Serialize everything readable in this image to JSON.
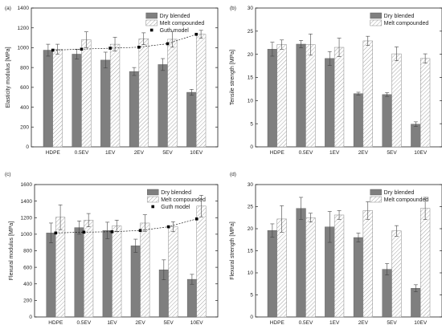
{
  "colors": {
    "dry": "#7f7f7f",
    "melt_hatch": "#9a9a9a",
    "guth": "#000000",
    "axis": "#222222"
  },
  "chart_data": [
    {
      "type": "bar",
      "panel_label": "(a)",
      "title": "",
      "xlabel": "",
      "ylabel": "Elasticity modulus [MPa]",
      "categories": [
        "HDPE",
        "0.5EV",
        "1EV",
        "2EV",
        "5EV",
        "10EV"
      ],
      "ylim": [
        0,
        1400
      ],
      "yticks": [
        0,
        200,
        400,
        600,
        800,
        1000,
        1200,
        1400
      ],
      "grid": false,
      "legend_position": "top-right",
      "series": [
        {
          "name": "Dry blended",
          "style": "solid",
          "values": [
            975,
            935,
            875,
            760,
            830,
            550
          ],
          "errors": [
            60,
            50,
            80,
            40,
            60,
            30
          ]
        },
        {
          "name": "Melt compounded",
          "style": "hatched",
          "values": [
            985,
            1080,
            1035,
            1090,
            1085,
            1135
          ],
          "errors": [
            50,
            80,
            70,
            60,
            80,
            40
          ]
        },
        {
          "name": "Guth model",
          "style": "points-dashed",
          "values": [
            975,
            985,
            995,
            1005,
            1040,
            1135
          ]
        }
      ]
    },
    {
      "type": "bar",
      "panel_label": "(b)",
      "title": "",
      "xlabel": "",
      "ylabel": "Tensile strength [MPa]",
      "categories": [
        "HDPE",
        "0.5EV",
        "1EV",
        "2EV",
        "5EV",
        "10EV"
      ],
      "ylim": [
        0,
        30
      ],
      "yticks": [
        0,
        5,
        10,
        15,
        20,
        25,
        30
      ],
      "grid": false,
      "legend_position": "top-right",
      "series": [
        {
          "name": "Dry blended",
          "style": "solid",
          "values": [
            21.1,
            22.2,
            19.1,
            11.5,
            11.3,
            4.9
          ],
          "errors": [
            1.5,
            0.8,
            1.5,
            0.3,
            0.4,
            0.5
          ]
        },
        {
          "name": "Melt compounded",
          "style": "hatched",
          "values": [
            22.1,
            22.1,
            21.5,
            22.9,
            20.1,
            19.1
          ],
          "errors": [
            1.0,
            2.3,
            2.0,
            1.0,
            1.5,
            1.0
          ]
        }
      ]
    },
    {
      "type": "bar",
      "panel_label": "(c)",
      "title": "",
      "xlabel": "",
      "ylabel": "Flexural modulus [MPa]",
      "categories": [
        "HDPE",
        "0.5EV",
        "1EV",
        "2EV",
        "5EV",
        "10EV"
      ],
      "ylim": [
        0,
        1600
      ],
      "yticks": [
        0,
        200,
        400,
        600,
        800,
        1000,
        1200,
        1400,
        1600
      ],
      "grid": false,
      "legend_position": "top-right",
      "series": [
        {
          "name": "Dry blended",
          "style": "solid",
          "values": [
            1015,
            1080,
            1045,
            860,
            570,
            455
          ],
          "errors": [
            120,
            80,
            100,
            80,
            120,
            60
          ]
        },
        {
          "name": "Melt compounded",
          "style": "hatched",
          "values": [
            1205,
            1170,
            1100,
            1135,
            1090,
            1340
          ],
          "errors": [
            150,
            80,
            70,
            100,
            60,
            130
          ]
        },
        {
          "name": "Guth model",
          "style": "points-dashed",
          "values": [
            1015,
            1025,
            1030,
            1045,
            1090,
            1185
          ]
        }
      ]
    },
    {
      "type": "bar",
      "panel_label": "(d)",
      "title": "",
      "xlabel": "",
      "ylabel": "Flexural strength [MPa]",
      "categories": [
        "HDPE",
        "0.5EV",
        "1EV",
        "2EV",
        "5EV",
        "10EV"
      ],
      "ylim": [
        0,
        30
      ],
      "yticks": [
        0,
        5,
        10,
        15,
        20,
        25,
        30
      ],
      "grid": false,
      "legend_position": "top-right",
      "series": [
        {
          "name": "Dry blended",
          "style": "solid",
          "values": [
            19.6,
            24.6,
            20.4,
            18.0,
            10.8,
            6.5
          ],
          "errors": [
            1.5,
            2.5,
            3.5,
            1.0,
            1.3,
            0.8
          ]
        },
        {
          "name": "Melt compounded",
          "style": "hatched",
          "values": [
            22.2,
            22.5,
            23.1,
            24.1,
            19.5,
            24.6
          ],
          "errors": [
            3.0,
            1.0,
            1.0,
            2.0,
            1.2,
            2.5
          ]
        }
      ]
    }
  ]
}
